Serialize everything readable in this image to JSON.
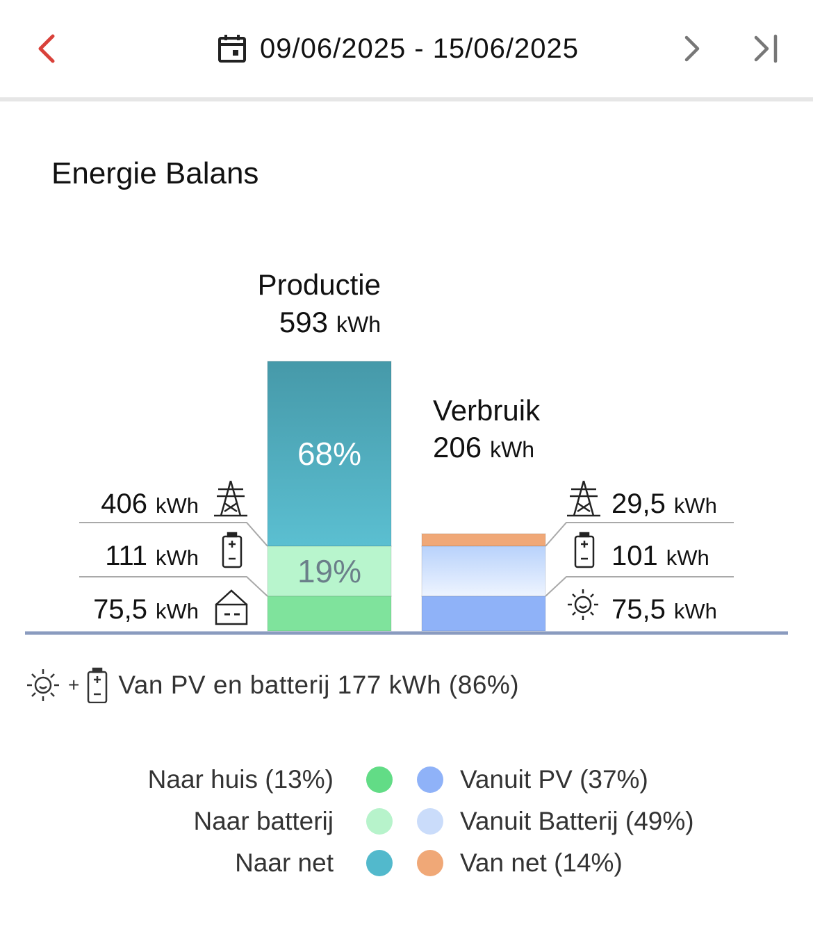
{
  "header": {
    "date_range": "09/06/2025 - 15/06/2025",
    "icons": [
      "chevron-left-icon",
      "calendar-icon",
      "chevron-right-icon",
      "skip-last-icon"
    ],
    "accent_color": "#d9413a"
  },
  "title": "Energie Balans",
  "chart_data": {
    "type": "bar",
    "production": {
      "label": "Productie",
      "total": "593",
      "unit": "kWh",
      "segments": [
        {
          "name": "Naar net",
          "value": 406,
          "value_text": "406",
          "percent_text": "68%",
          "color_top": "#4699a9",
          "color_bottom": "#5bbfd1",
          "icon": "power-pylon-icon"
        },
        {
          "name": "Naar batterij",
          "value": 111,
          "value_text": "111",
          "percent_text": "19%",
          "color": "#b8f5cd",
          "icon": "battery-icon"
        },
        {
          "name": "Naar huis",
          "value": 75.5,
          "value_text": "75,5",
          "percent_text": "",
          "color": "#7fe39c",
          "icon": "house-icon"
        }
      ]
    },
    "consumption": {
      "label": "Verbruik",
      "total": "206",
      "unit": "kWh",
      "segments": [
        {
          "name": "Van net",
          "value": 29.5,
          "value_text": "29,5",
          "color": "#f0a877",
          "icon": "power-pylon-icon"
        },
        {
          "name": "Vanuit Batterij",
          "value": 101,
          "value_text": "101",
          "color_top": "#b8d2fb",
          "color_bottom": "#eef4ff",
          "icon": "battery-icon"
        },
        {
          "name": "Vanuit PV",
          "value": 75.5,
          "value_text": "75,5",
          "color": "#8fb2f8",
          "icon": "sun-icon"
        }
      ]
    },
    "unit": "kWh",
    "baseline_color": "#8a9bbf"
  },
  "summary": {
    "text": "Van PV en batterij 177 kWh (86%)",
    "plus": "+",
    "icons": [
      "sun-icon",
      "battery-icon"
    ]
  },
  "legend": {
    "left": [
      {
        "label": "Naar huis (13%)",
        "color": "#62dc86"
      },
      {
        "label": "Naar batterij",
        "color": "#b7f3cb"
      },
      {
        "label": "Naar net",
        "color": "#52b9cc"
      }
    ],
    "right": [
      {
        "label": "Vanuit PV (37%)",
        "color": "#8fb2f8"
      },
      {
        "label": "Vanuit Batterij (49%)",
        "color": "#cadcfa"
      },
      {
        "label": "Van net (14%)",
        "color": "#f0a877"
      }
    ]
  }
}
